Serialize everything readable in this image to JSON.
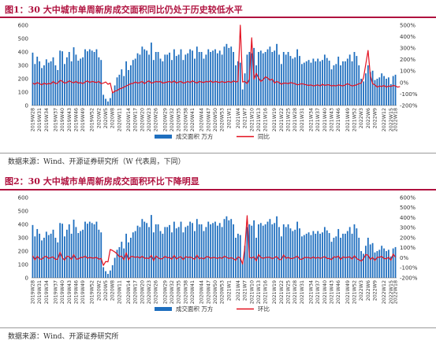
{
  "figures": [
    {
      "title": "图1：30 大中城市单周新房成交面积同比仍处于历史较低水平",
      "source": "数据来源：Wind、开源证券研究所（W 代表周，下同）"
    },
    {
      "title": "图2：30 大中城市单周新房成交面积环比下降明显",
      "source": "数据来源：Wind、开源证券研究所"
    }
  ],
  "chart_data": [
    {
      "type": "bar",
      "x_tick_labels": [
        "2019W28",
        "2019W31",
        "2019W34",
        "2019W37",
        "2019W40",
        "2019W43",
        "2019W46",
        "2019W49",
        "2019W52",
        "2020W2",
        "2020W5",
        "2020W8",
        "2020W11",
        "2020W14",
        "2020W17",
        "2020W20",
        "2020W23",
        "2020W26",
        "2020W29",
        "2020W32",
        "2020W35",
        "2020W38",
        "2020W41",
        "2020W44",
        "2020W47",
        "2020W50",
        "2020W53",
        "2021W1",
        "2021W4",
        "2021W7",
        "2021W10",
        "2021W13",
        "2021W16",
        "2021W19",
        "2021W22",
        "2021W25",
        "2021W28",
        "2021W31",
        "2021W34",
        "2021W37",
        "2021W40",
        "2021W43",
        "2021W46",
        "2021W49",
        "2021W52",
        "2022W3",
        "2022W6",
        "2022W9",
        "2022W12",
        "2022W15",
        "2022W18"
      ],
      "left_axis": {
        "ylim": [
          0,
          600
        ],
        "ticks": [
          0,
          100,
          200,
          300,
          400,
          500,
          600
        ]
      },
      "right_axis": {
        "ylim": [
          -200,
          500
        ],
        "ticks": [
          "-200%",
          "-100%",
          "0%",
          "100%",
          "200%",
          "300%",
          "400%",
          "500%"
        ]
      },
      "legend": [
        "成交面积 万方",
        "同比"
      ],
      "colors": {
        "bar": "#1f6fbf",
        "line": "#e3101f"
      },
      "series": [
        {
          "name": "成交面积 万方",
          "axis": "left",
          "values": [
            395,
            310,
            365,
            330,
            280,
            300,
            345,
            320,
            330,
            360,
            300,
            265,
            410,
            405,
            310,
            360,
            400,
            330,
            435,
            380,
            335,
            350,
            360,
            420,
            405,
            420,
            410,
            400,
            420,
            360,
            340,
            80,
            50,
            30,
            55,
            95,
            150,
            210,
            230,
            270,
            220,
            330,
            265,
            300,
            340,
            350,
            390,
            380,
            440,
            420,
            410,
            380,
            470,
            340,
            400,
            400,
            350,
            330,
            380,
            380,
            395,
            340,
            420,
            370,
            380,
            420,
            340,
            380,
            390,
            420,
            410,
            350,
            440,
            400,
            400,
            350,
            380,
            420,
            400,
            410,
            420,
            390,
            410,
            380,
            440,
            460,
            430,
            440,
            400,
            300,
            330,
            320,
            120,
            240,
            380,
            400,
            390,
            430,
            300,
            400,
            410,
            390,
            400,
            420,
            440,
            400,
            410,
            460,
            380,
            310,
            400,
            380,
            400,
            370,
            350,
            360,
            420,
            370,
            310,
            320,
            330,
            340,
            320,
            350,
            330,
            350,
            330,
            340,
            380,
            355,
            335,
            270,
            300,
            310,
            365,
            300,
            330,
            330,
            350,
            380,
            330,
            400,
            370,
            300,
            200,
            180,
            240,
            300,
            250,
            260,
            190,
            200,
            210,
            240,
            220,
            200,
            210,
            160,
            220,
            230
          ]
        },
        {
          "name": "同比",
          "axis": "right",
          "values": [
            -5,
            -15,
            0,
            -10,
            -20,
            -5,
            -15,
            -8,
            -12,
            10,
            -10,
            -5,
            20,
            10,
            -5,
            0,
            15,
            5,
            -3,
            10,
            -5,
            0,
            -10,
            5,
            15,
            0,
            10,
            5,
            0,
            10,
            -10,
            -5,
            5,
            -15,
            -5,
            -90,
            -75,
            -70,
            -55,
            -50,
            -40,
            -30,
            -20,
            -10,
            -8,
            5,
            -5,
            0,
            10,
            -10,
            5,
            15,
            -5,
            0,
            10,
            5,
            10,
            -5,
            0,
            5,
            10,
            0,
            15,
            -5,
            5,
            10,
            -5,
            0,
            10,
            0,
            15,
            5,
            -5,
            10,
            5,
            0,
            10,
            5,
            15,
            0,
            10,
            5,
            0,
            10,
            0,
            5,
            10,
            0,
            15,
            5,
            10,
            500,
            5,
            10,
            -10,
            30,
            390,
            30,
            80,
            40,
            10,
            25,
            50,
            40,
            20,
            30,
            -5,
            10,
            0,
            -15,
            -5,
            -5,
            -10,
            0,
            -5,
            -10,
            -20,
            -15,
            -10,
            -15,
            -20,
            -25,
            -20,
            -30,
            -25,
            -20,
            -30,
            -15,
            -25,
            -20,
            -20,
            -30,
            -25,
            -30,
            -20,
            -25,
            -30,
            -20,
            -10,
            -20,
            -30,
            -25,
            -20,
            -10,
            -5,
            40,
            160,
            280,
            60,
            -10,
            -20,
            -40,
            -30,
            -35,
            -25,
            -40,
            -30,
            -35,
            -25,
            -30,
            -40,
            -35
          ]
        }
      ]
    },
    {
      "type": "bar",
      "x_tick_labels": [
        "2019W28",
        "2019W31",
        "2019W34",
        "2019W37",
        "2019W40",
        "2019W43",
        "2019W46",
        "2019W49",
        "2019W52",
        "2020W2",
        "2020W5",
        "2020W8",
        "2020W11",
        "2020W14",
        "2020W17",
        "2020W20",
        "2020W23",
        "2020W26",
        "2020W29",
        "2020W32",
        "2020W35",
        "2020W38",
        "2020W41",
        "2020W44",
        "2020W47",
        "2020W50",
        "2020W53",
        "2021W1",
        "2021W4",
        "2021W7",
        "2021W10",
        "2021W13",
        "2021W16",
        "2021W19",
        "2021W22",
        "2021W25",
        "2021W28",
        "2021W31",
        "2021W34",
        "2021W37",
        "2021W40",
        "2021W43",
        "2021W46",
        "2021W49",
        "2021W52",
        "2022W3",
        "2022W6",
        "2022W9",
        "2022W12",
        "2022W15",
        "2022W18"
      ],
      "left_axis": {
        "ylim": [
          0,
          600
        ],
        "ticks": [
          0,
          100,
          200,
          300,
          400,
          500,
          600
        ]
      },
      "right_axis": {
        "ylim": [
          -200,
          600
        ],
        "ticks": [
          "-200%",
          "-100%",
          "0%",
          "100%",
          "200%",
          "300%",
          "400%",
          "500%",
          "600%"
        ]
      },
      "legend": [
        "成交面积 万方",
        "环比"
      ],
      "colors": {
        "bar": "#1f6fbf",
        "line": "#e3101f"
      },
      "series": [
        {
          "name": "成交面积 万方",
          "axis": "left",
          "values": [
            395,
            310,
            365,
            330,
            280,
            300,
            345,
            320,
            330,
            360,
            300,
            265,
            410,
            405,
            310,
            360,
            400,
            330,
            435,
            380,
            335,
            350,
            360,
            420,
            405,
            420,
            410,
            400,
            420,
            360,
            340,
            80,
            50,
            30,
            55,
            95,
            150,
            210,
            230,
            270,
            220,
            330,
            265,
            300,
            340,
            350,
            390,
            380,
            440,
            420,
            410,
            380,
            470,
            340,
            400,
            400,
            350,
            330,
            380,
            380,
            395,
            340,
            420,
            370,
            380,
            420,
            340,
            380,
            390,
            420,
            410,
            350,
            440,
            400,
            400,
            350,
            380,
            420,
            400,
            410,
            420,
            390,
            410,
            380,
            440,
            460,
            430,
            440,
            400,
            300,
            330,
            320,
            120,
            240,
            380,
            400,
            390,
            430,
            300,
            400,
            410,
            390,
            400,
            420,
            440,
            400,
            410,
            460,
            380,
            310,
            400,
            380,
            400,
            370,
            350,
            360,
            420,
            370,
            310,
            320,
            330,
            340,
            320,
            350,
            330,
            350,
            330,
            340,
            380,
            355,
            335,
            270,
            300,
            310,
            365,
            300,
            330,
            330,
            350,
            380,
            330,
            400,
            370,
            300,
            200,
            180,
            240,
            300,
            250,
            260,
            190,
            200,
            210,
            240,
            220,
            200,
            210,
            160,
            220,
            230
          ]
        },
        {
          "name": "环比",
          "axis": "right",
          "values": [
            20,
            -20,
            15,
            -10,
            -15,
            8,
            15,
            -7,
            3,
            9,
            -17,
            -12,
            55,
            -1,
            -23,
            16,
            11,
            -17,
            32,
            -12,
            -12,
            4,
            3,
            17,
            -4,
            4,
            -2,
            -2,
            5,
            -14,
            -6,
            -76,
            -37,
            -40,
            83,
            73,
            58,
            40,
            10,
            17,
            -19,
            50,
            -20,
            13,
            13,
            3,
            11,
            -3,
            16,
            -5,
            -2,
            -7,
            24,
            -28,
            18,
            0,
            -12,
            -6,
            15,
            0,
            4,
            -14,
            24,
            -12,
            3,
            11,
            -19,
            12,
            3,
            8,
            -2,
            -15,
            26,
            -9,
            0,
            -12,
            9,
            11,
            -5,
            3,
            2,
            -7,
            5,
            -7,
            16,
            5,
            -7,
            2,
            -9,
            -25,
            10,
            -3,
            -62,
            100,
            420,
            5,
            -3,
            10,
            -30,
            33,
            3,
            -5,
            3,
            5,
            5,
            -9,
            3,
            12,
            -17,
            -18,
            29,
            -5,
            5,
            -8,
            -5,
            3,
            17,
            -12,
            -16,
            3,
            3,
            3,
            -6,
            9,
            -6,
            6,
            -6,
            3,
            12,
            -7,
            -6,
            -19,
            11,
            3,
            18,
            -18,
            10,
            0,
            6,
            9,
            -13,
            21,
            -8,
            -19,
            -33,
            -10,
            33,
            25,
            -17,
            4,
            -27,
            5,
            5,
            14,
            -8,
            -9,
            5,
            -24,
            38,
            5
          ]
        }
      ]
    }
  ]
}
